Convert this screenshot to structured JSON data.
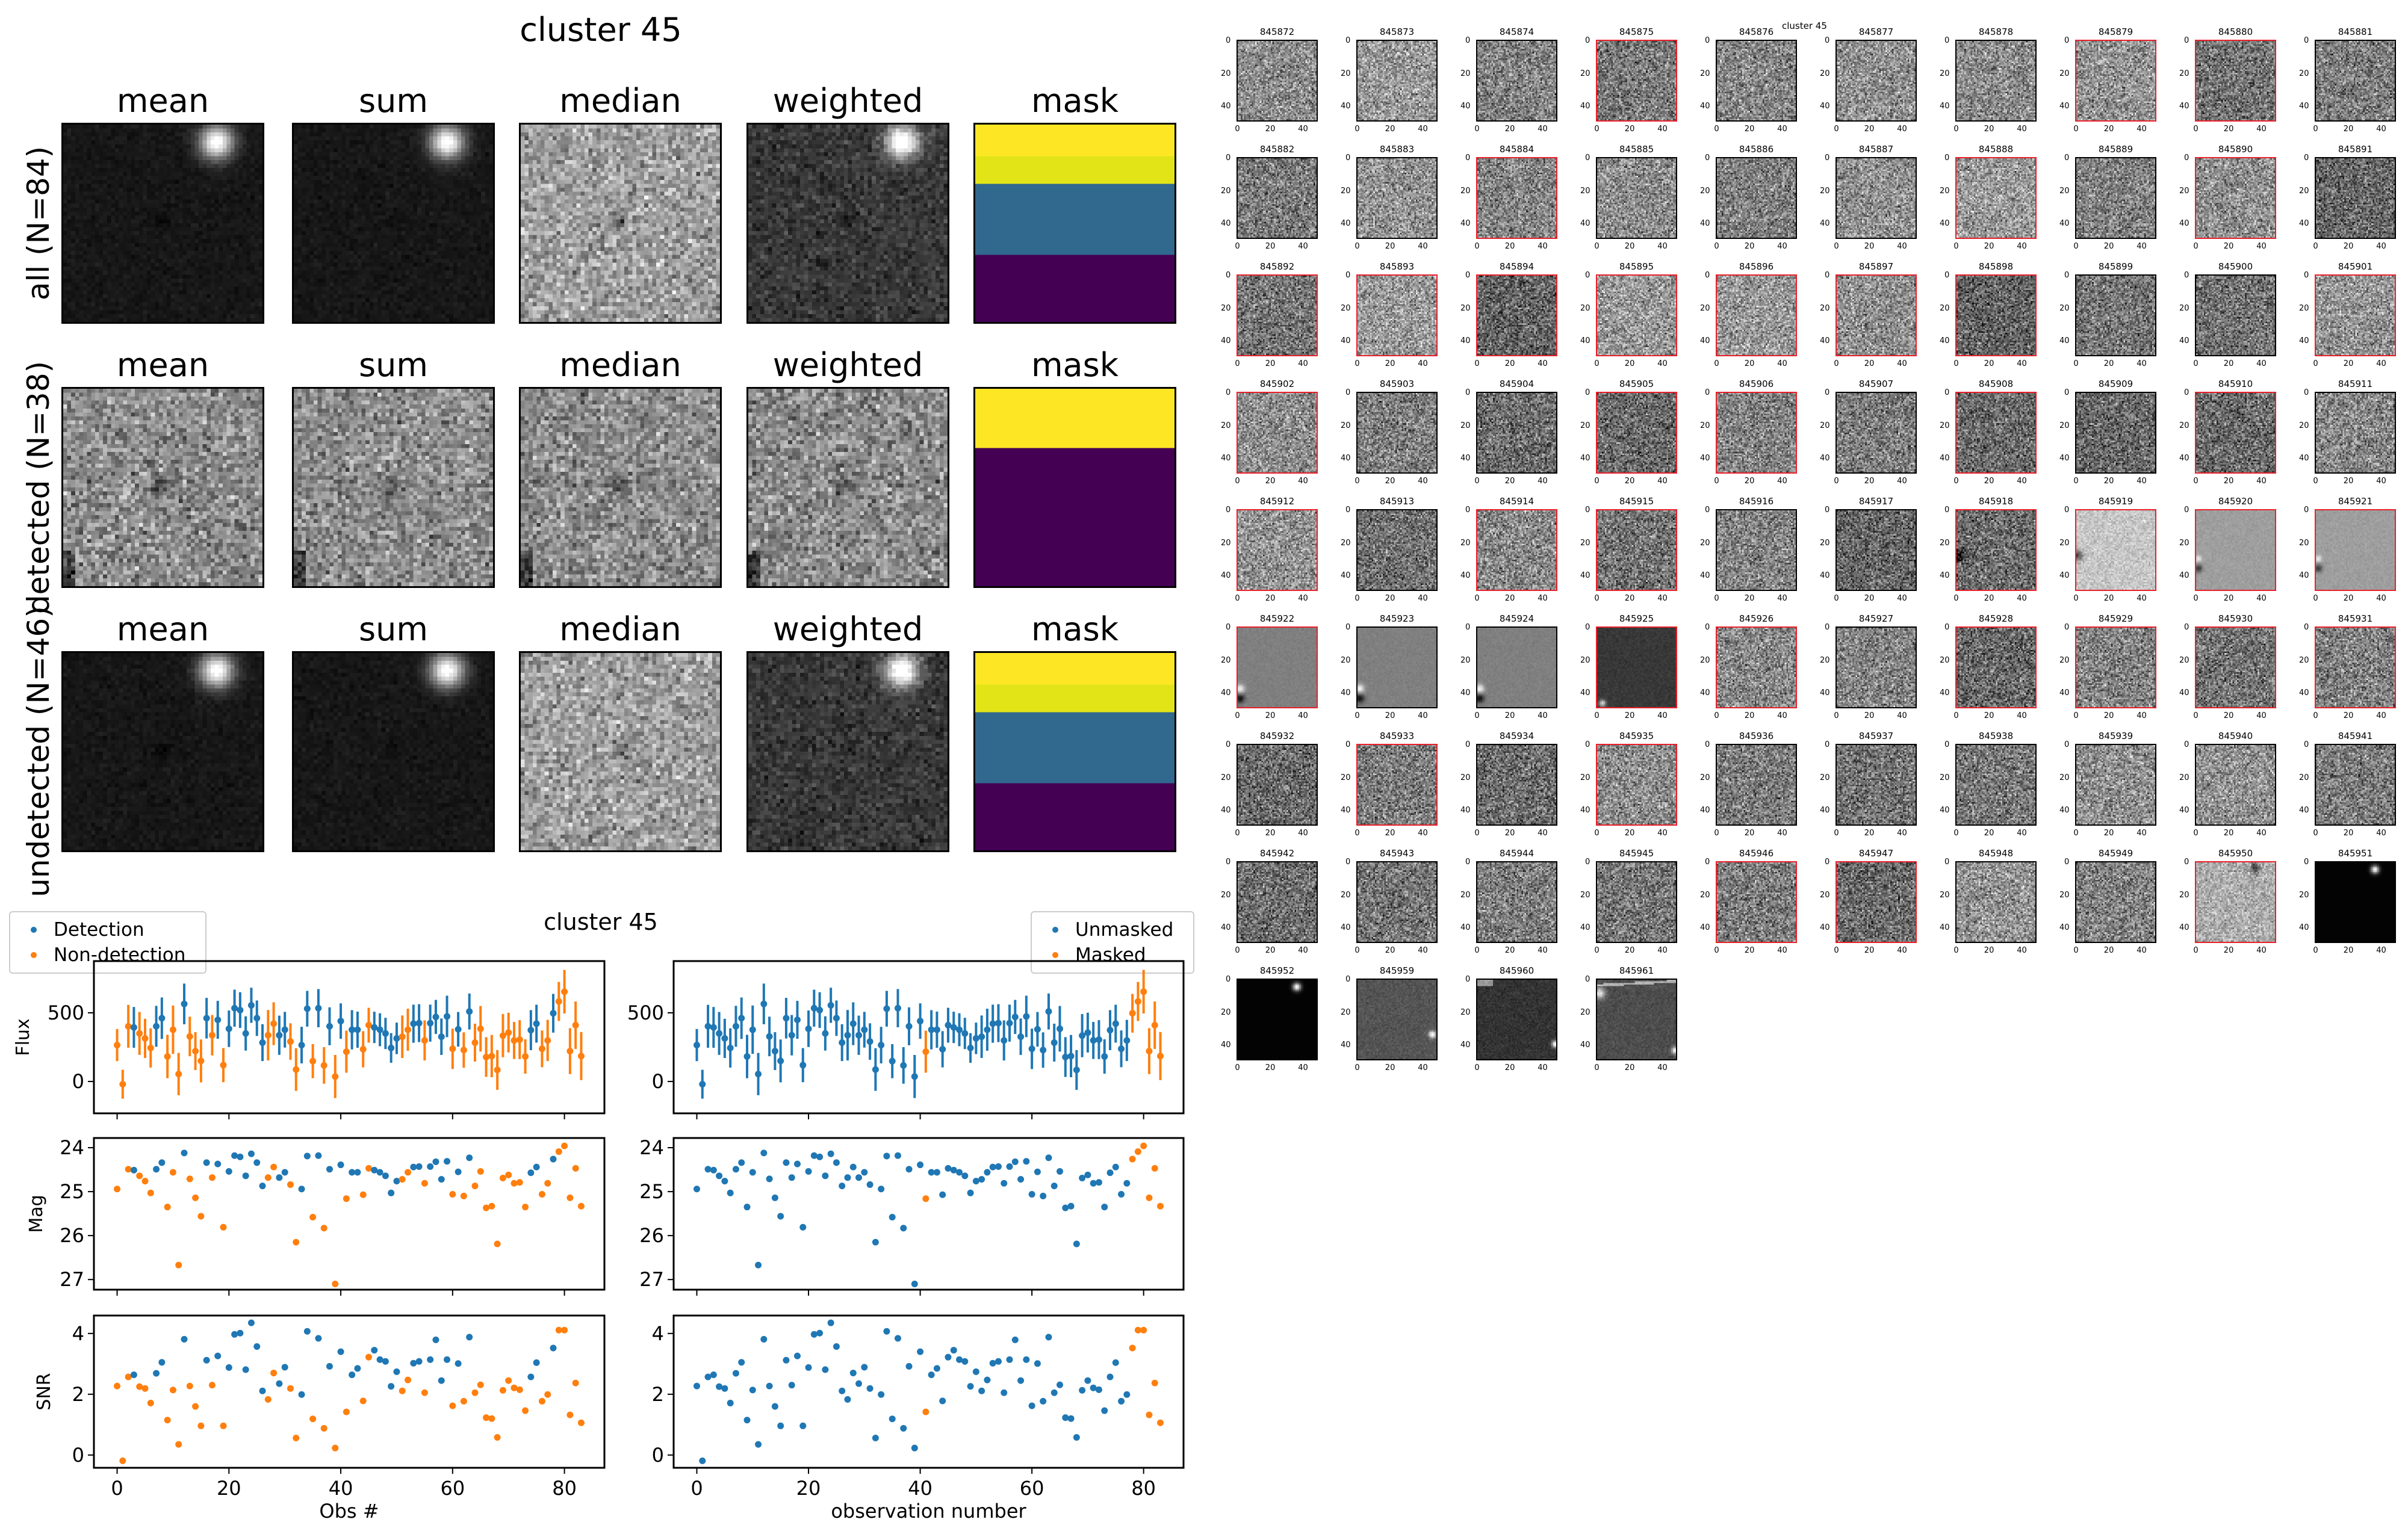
{
  "summary": {
    "title": "cluster 45",
    "columns": [
      "mean",
      "sum",
      "median",
      "weighted",
      "mask"
    ],
    "rows": [
      {
        "label": "all (N=84)"
      },
      {
        "label": "detected (N=38)"
      },
      {
        "label": "undetected (N=46)"
      }
    ],
    "mask_colors": {
      "yellow": "#fde725",
      "yellow_green": "#e2e418",
      "blue": "#31688e",
      "purple": "#440154"
    }
  },
  "stamps": {
    "title": "cluster 45",
    "tick_labels": [
      "0",
      "20",
      "40"
    ],
    "detected_border_color": "#e8202a",
    "ids": [
      "845872",
      "845873",
      "845874",
      "845875",
      "845876",
      "845877",
      "845878",
      "845879",
      "845880",
      "845881",
      "845882",
      "845883",
      "845884",
      "845885",
      "845886",
      "845887",
      "845888",
      "845889",
      "845890",
      "845891",
      "845892",
      "845893",
      "845894",
      "845895",
      "845896",
      "845897",
      "845898",
      "845899",
      "845900",
      "845901",
      "845902",
      "845903",
      "845904",
      "845905",
      "845906",
      "845907",
      "845908",
      "845909",
      "845910",
      "845911",
      "845912",
      "845913",
      "845914",
      "845915",
      "845916",
      "845917",
      "845918",
      "845919",
      "845920",
      "845921",
      "845922",
      "845923",
      "845924",
      "845925",
      "845926",
      "845927",
      "845928",
      "845929",
      "845930",
      "845931",
      "845932",
      "845933",
      "845934",
      "845935",
      "845936",
      "845937",
      "845938",
      "845939",
      "845940",
      "845941",
      "845942",
      "845943",
      "845944",
      "845945",
      "845946",
      "845947",
      "845948",
      "845949",
      "845950",
      "845951",
      "845952",
      "845959",
      "845960",
      "845961"
    ],
    "special_styles": {
      "845918": "edge-dark",
      "845919": "light-edge",
      "845920": "flat-edge",
      "845921": "flat-edge",
      "845922": "flat-blob-bl",
      "845923": "flat-blob-bl",
      "845924": "flat-blob-bl",
      "845925": "dark-flat",
      "845950": "light-blob-tr",
      "845951": "black-blob-tr",
      "845952": "black-blob-tr",
      "845959": "gray-blob-r",
      "845960": "dark-blob-r",
      "845961": "gray-streak"
    }
  },
  "chart_data": {
    "type": "scatter",
    "title": "cluster 45",
    "x": "observation index 0..83",
    "colors": {
      "blue": "#1f77b4",
      "orange": "#ff7f0e"
    },
    "xlim": [
      -4.15,
      87.15
    ],
    "xticks": [
      0,
      20,
      40,
      60,
      80
    ],
    "left_xlabel": "Obs #",
    "right_xlabel": "observation number",
    "left_legend": {
      "placement": "top-left",
      "entries": [
        "Detection",
        "Non-detection"
      ]
    },
    "right_legend": {
      "placement": "top-right",
      "entries": [
        "Unmasked",
        "Masked"
      ]
    },
    "panels": [
      {
        "key": "flux",
        "ylabel": "Flux",
        "ylim": [
          -232,
          877
        ],
        "yticks": [
          0,
          500
        ],
        "inverted": false
      },
      {
        "key": "mag",
        "ylabel": "Mag",
        "ylim": [
          23.78,
          27.23
        ],
        "yticks": [
          24,
          25,
          26,
          27
        ],
        "inverted": true
      },
      {
        "key": "snr",
        "ylabel": "SNR",
        "ylim": [
          -0.42,
          4.59
        ],
        "yticks": [
          0,
          2,
          4
        ],
        "inverted": false
      }
    ],
    "detected": [
      0,
      0,
      0,
      1,
      0,
      0,
      0,
      1,
      1,
      0,
      0,
      0,
      1,
      0,
      0,
      0,
      1,
      0,
      1,
      0,
      1,
      1,
      1,
      1,
      1,
      1,
      1,
      0,
      0,
      1,
      1,
      0,
      0,
      1,
      1,
      0,
      1,
      0,
      1,
      0,
      1,
      0,
      1,
      1,
      0,
      0,
      1,
      1,
      1,
      1,
      1,
      0,
      0,
      1,
      1,
      0,
      1,
      1,
      1,
      1,
      0,
      1,
      0,
      1,
      0,
      0,
      0,
      0,
      0,
      0,
      0,
      0,
      0,
      0,
      1,
      1,
      0,
      0,
      1,
      0,
      0,
      0,
      0,
      0
    ],
    "masked": [
      41,
      78,
      79,
      80,
      81,
      82,
      83
    ],
    "flux": [
      265,
      -20,
      402,
      394,
      350,
      314,
      244,
      402,
      461,
      182,
      377,
      54,
      565,
      328,
      221,
      150,
      461,
      337,
      449,
      119,
      384,
      534,
      520,
      350,
      555,
      461,
      283,
      337,
      421,
      337,
      377,
      291,
      87,
      265,
      530,
      148,
      534,
      117,
      402,
      36,
      440,
      217,
      377,
      377,
      235,
      410,
      394,
      377,
      350,
      244,
      314,
      326,
      377,
      421,
      425,
      299,
      425,
      470,
      326,
      474,
      238,
      380,
      229,
      510,
      283,
      384,
      178,
      185,
      84,
      334,
      356,
      299,
      305,
      182,
      374,
      421,
      238,
      299,
      497,
      583,
      654,
      221,
      410,
      185
    ],
    "flux_err": [
      117,
      105,
      156,
      149,
      156,
      143,
      143,
      149,
      151,
      158,
      176,
      154,
      148,
      144,
      138,
      156,
      148,
      147,
      138,
      124,
      133,
      135,
      130,
      125,
      128,
      129,
      134,
      184,
      156,
      143,
      130,
      133,
      155,
      133,
      130,
      124,
      139,
      133,
      138,
      157,
      129,
      153,
      143,
      132,
      132,
      127,
      114,
      120,
      114,
      108,
      115,
      155,
      153,
      139,
      138,
      146,
      135,
      124,
      133,
      151,
      147,
      126,
      129,
      131,
      138,
      166,
      145,
      154,
      145,
      157,
      145,
      135,
      142,
      125,
      146,
      138,
      134,
      150,
      141,
      142,
      159,
      167,
      173,
      175
    ],
    "mag": [
      24.94,
      null,
      24.49,
      24.51,
      24.64,
      24.76,
      25.03,
      24.49,
      24.34,
      25.35,
      24.56,
      26.67,
      24.12,
      24.71,
      25.14,
      25.56,
      24.34,
      24.68,
      24.37,
      25.81,
      24.54,
      24.18,
      24.21,
      24.64,
      24.14,
      24.34,
      24.87,
      24.68,
      24.44,
      24.68,
      24.56,
      24.84,
      26.15,
      24.94,
      24.19,
      25.58,
      24.18,
      25.83,
      24.49,
      27.1,
      24.39,
      25.16,
      24.56,
      24.56,
      25.07,
      24.47,
      24.51,
      24.56,
      24.64,
      25.03,
      24.76,
      24.72,
      24.56,
      24.44,
      24.43,
      24.81,
      24.43,
      24.32,
      24.72,
      24.31,
      25.06,
      24.55,
      25.1,
      24.23,
      24.87,
      24.54,
      25.37,
      25.33,
      26.19,
      24.69,
      24.62,
      24.81,
      24.79,
      25.35,
      24.57,
      24.44,
      25.06,
      24.81,
      24.26,
      24.09,
      23.96,
      25.14,
      24.47,
      25.33
    ],
    "snr": [
      2.27,
      -0.19,
      2.57,
      2.64,
      2.25,
      2.19,
      1.71,
      2.69,
      3.05,
      1.15,
      2.14,
      0.35,
      3.81,
      2.27,
      1.6,
      0.96,
      3.12,
      2.3,
      3.26,
      0.96,
      2.88,
      3.97,
      4.01,
      2.81,
      4.35,
      3.57,
      2.11,
      1.83,
      2.7,
      2.35,
      2.89,
      2.19,
      0.56,
      1.99,
      4.07,
      1.19,
      3.84,
      0.88,
      2.92,
      0.23,
      3.4,
      1.42,
      2.64,
      2.85,
      1.78,
      3.22,
      3.45,
      3.14,
      3.08,
      2.26,
      2.74,
      2.11,
      2.47,
      3.02,
      3.08,
      2.05,
      3.14,
      3.79,
      2.45,
      3.14,
      1.62,
      3.01,
      1.77,
      3.88,
      2.05,
      2.31,
      1.23,
      1.2,
      0.58,
      2.13,
      2.45,
      2.21,
      2.15,
      1.46,
      2.57,
      3.04,
      1.77,
      1.99,
      3.52,
      4.11,
      4.11,
      1.32,
      2.37,
      1.06
    ]
  }
}
